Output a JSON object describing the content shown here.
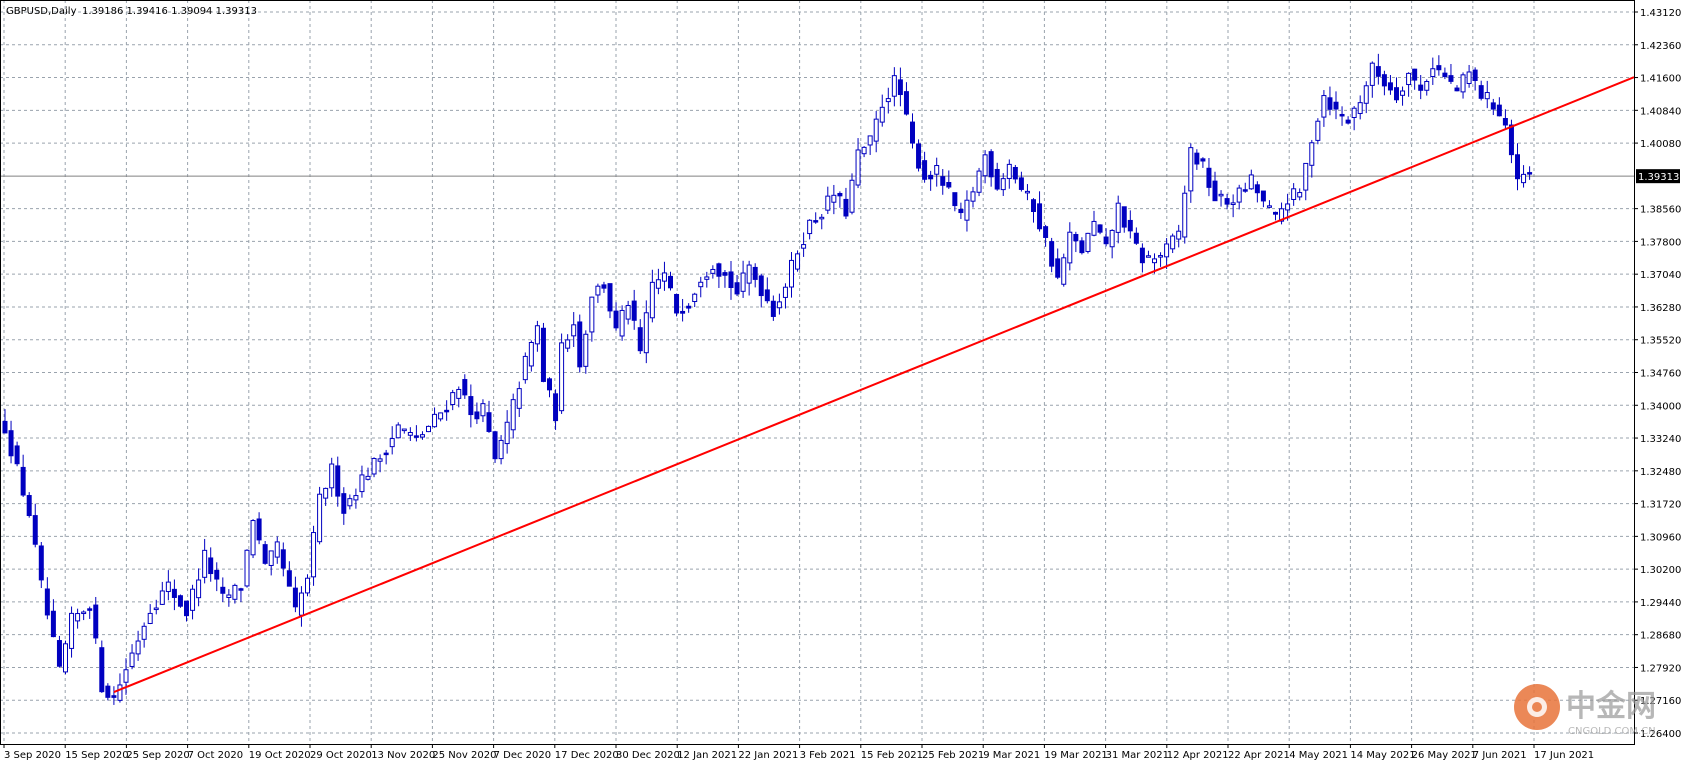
{
  "header": {
    "symbol": "GBPUSD,Daily",
    "ohlc": "1.39186 1.39416 1.39094 1.39313"
  },
  "current_price": "1.39313",
  "watermark": {
    "brand": "中金网",
    "site": "CNGOLD.COM.CN"
  },
  "colors": {
    "candle": "#0000c0",
    "trendline": "#ff0000",
    "grid": "#9aa3ad",
    "price_line": "#808080"
  },
  "chart_data": {
    "type": "candlestick",
    "title": "",
    "ylim": [
      1.264,
      1.4312
    ],
    "y_ticks": [
      "1.43120",
      "1.42360",
      "1.41600",
      "1.40840",
      "1.40080",
      "1.39313",
      "1.38560",
      "1.37800",
      "1.37040",
      "1.36280",
      "1.35520",
      "1.34760",
      "1.34000",
      "1.33240",
      "1.32480",
      "1.31720",
      "1.30960",
      "1.30200",
      "1.29440",
      "1.28680",
      "1.27920",
      "1.27160",
      "1.26400"
    ],
    "x_labels": [
      "3 Sep 2020",
      "15 Sep 2020",
      "25 Sep 2020",
      "7 Oct 2020",
      "19 Oct 2020",
      "29 Oct 2020",
      "13 Nov 2020",
      "25 Nov 2020",
      "7 Dec 2020",
      "17 Dec 2020",
      "30 Dec 2020",
      "12 Jan 2021",
      "22 Jan 2021",
      "3 Feb 2021",
      "15 Feb 2021",
      "25 Feb 2021",
      "9 Mar 2021",
      "19 Mar 2021",
      "31 Mar 2021",
      "12 Apr 2021",
      "22 Apr 2021",
      "4 May 2021",
      "14 May 2021",
      "26 May 2021",
      "7 Jun 2021",
      "17 Jun 2021"
    ],
    "grid": true,
    "anchors": [
      {
        "i": 0,
        "c": 1.335
      },
      {
        "i": 4,
        "c": 1.315
      },
      {
        "i": 6,
        "c": 1.298
      },
      {
        "i": 9,
        "c": 1.278
      },
      {
        "i": 11,
        "c": 1.29
      },
      {
        "i": 14,
        "c": 1.294
      },
      {
        "i": 16,
        "c": 1.275
      },
      {
        "i": 18,
        "c": 1.272
      },
      {
        "i": 20,
        "c": 1.279
      },
      {
        "i": 24,
        "c": 1.293
      },
      {
        "i": 27,
        "c": 1.298
      },
      {
        "i": 30,
        "c": 1.292
      },
      {
        "i": 33,
        "c": 1.305
      },
      {
        "i": 36,
        "c": 1.295
      },
      {
        "i": 39,
        "c": 1.298
      },
      {
        "i": 41,
        "c": 1.314
      },
      {
        "i": 43,
        "c": 1.302
      },
      {
        "i": 45,
        "c": 1.307
      },
      {
        "i": 48,
        "c": 1.292
      },
      {
        "i": 50,
        "c": 1.3
      },
      {
        "i": 52,
        "c": 1.318
      },
      {
        "i": 54,
        "c": 1.325
      },
      {
        "i": 56,
        "c": 1.316
      },
      {
        "i": 59,
        "c": 1.323
      },
      {
        "i": 62,
        "c": 1.328
      },
      {
        "i": 65,
        "c": 1.335
      },
      {
        "i": 68,
        "c": 1.332
      },
      {
        "i": 70,
        "c": 1.335
      },
      {
        "i": 73,
        "c": 1.34
      },
      {
        "i": 75,
        "c": 1.345
      },
      {
        "i": 77,
        "c": 1.338
      },
      {
        "i": 79,
        "c": 1.339
      },
      {
        "i": 81,
        "c": 1.327
      },
      {
        "i": 83,
        "c": 1.335
      },
      {
        "i": 86,
        "c": 1.35
      },
      {
        "i": 88,
        "c": 1.358
      },
      {
        "i": 89,
        "c": 1.346
      },
      {
        "i": 91,
        "c": 1.338
      },
      {
        "i": 92,
        "c": 1.353
      },
      {
        "i": 94,
        "c": 1.36
      },
      {
        "i": 95,
        "c": 1.349
      },
      {
        "i": 97,
        "c": 1.366
      },
      {
        "i": 99,
        "c": 1.368
      },
      {
        "i": 101,
        "c": 1.357
      },
      {
        "i": 103,
        "c": 1.364
      },
      {
        "i": 105,
        "c": 1.352
      },
      {
        "i": 107,
        "c": 1.368
      },
      {
        "i": 109,
        "c": 1.37
      },
      {
        "i": 111,
        "c": 1.362
      },
      {
        "i": 113,
        "c": 1.364
      },
      {
        "i": 115,
        "c": 1.37
      },
      {
        "i": 117,
        "c": 1.373
      },
      {
        "i": 119,
        "c": 1.37
      },
      {
        "i": 121,
        "c": 1.366
      },
      {
        "i": 123,
        "c": 1.372
      },
      {
        "i": 125,
        "c": 1.367
      },
      {
        "i": 127,
        "c": 1.362
      },
      {
        "i": 129,
        "c": 1.368
      },
      {
        "i": 131,
        "c": 1.376
      },
      {
        "i": 133,
        "c": 1.382
      },
      {
        "i": 135,
        "c": 1.385
      },
      {
        "i": 137,
        "c": 1.389
      },
      {
        "i": 139,
        "c": 1.385
      },
      {
        "i": 141,
        "c": 1.398
      },
      {
        "i": 143,
        "c": 1.401
      },
      {
        "i": 145,
        "c": 1.41
      },
      {
        "i": 147,
        "c": 1.415
      },
      {
        "i": 148,
        "c": 1.412
      },
      {
        "i": 150,
        "c": 1.4
      },
      {
        "i": 152,
        "c": 1.393
      },
      {
        "i": 154,
        "c": 1.394
      },
      {
        "i": 156,
        "c": 1.389
      },
      {
        "i": 158,
        "c": 1.383
      },
      {
        "i": 160,
        "c": 1.39
      },
      {
        "i": 162,
        "c": 1.398
      },
      {
        "i": 164,
        "c": 1.391
      },
      {
        "i": 166,
        "c": 1.396
      },
      {
        "i": 168,
        "c": 1.39
      },
      {
        "i": 170,
        "c": 1.386
      },
      {
        "i": 172,
        "c": 1.378
      },
      {
        "i": 174,
        "c": 1.369
      },
      {
        "i": 176,
        "c": 1.379
      },
      {
        "i": 178,
        "c": 1.376
      },
      {
        "i": 180,
        "c": 1.382
      },
      {
        "i": 182,
        "c": 1.376
      },
      {
        "i": 184,
        "c": 1.386
      },
      {
        "i": 186,
        "c": 1.379
      },
      {
        "i": 188,
        "c": 1.374
      },
      {
        "i": 190,
        "c": 1.374
      },
      {
        "i": 192,
        "c": 1.376
      },
      {
        "i": 194,
        "c": 1.38
      },
      {
        "i": 196,
        "c": 1.399
      },
      {
        "i": 198,
        "c": 1.395
      },
      {
        "i": 200,
        "c": 1.388
      },
      {
        "i": 202,
        "c": 1.387
      },
      {
        "i": 204,
        "c": 1.389
      },
      {
        "i": 206,
        "c": 1.392
      },
      {
        "i": 208,
        "c": 1.387
      },
      {
        "i": 210,
        "c": 1.383
      },
      {
        "i": 212,
        "c": 1.388
      },
      {
        "i": 214,
        "c": 1.389
      },
      {
        "i": 216,
        "c": 1.402
      },
      {
        "i": 218,
        "c": 1.412
      },
      {
        "i": 220,
        "c": 1.408
      },
      {
        "i": 222,
        "c": 1.406
      },
      {
        "i": 224,
        "c": 1.411
      },
      {
        "i": 226,
        "c": 1.418
      },
      {
        "i": 228,
        "c": 1.415
      },
      {
        "i": 230,
        "c": 1.412
      },
      {
        "i": 232,
        "c": 1.417
      },
      {
        "i": 234,
        "c": 1.413
      },
      {
        "i": 236,
        "c": 1.419
      },
      {
        "i": 238,
        "c": 1.416
      },
      {
        "i": 240,
        "c": 1.413
      },
      {
        "i": 242,
        "c": 1.417
      },
      {
        "i": 244,
        "c": 1.412
      },
      {
        "i": 246,
        "c": 1.41
      },
      {
        "i": 248,
        "c": 1.405
      },
      {
        "i": 249,
        "c": 1.398
      },
      {
        "i": 250,
        "c": 1.391
      },
      {
        "i": 251,
        "c": 1.3931
      }
    ],
    "trendline": {
      "from": {
        "i": 18,
        "price": 1.2735
      },
      "to": {
        "i": 255,
        "price": 1.408
      }
    }
  }
}
